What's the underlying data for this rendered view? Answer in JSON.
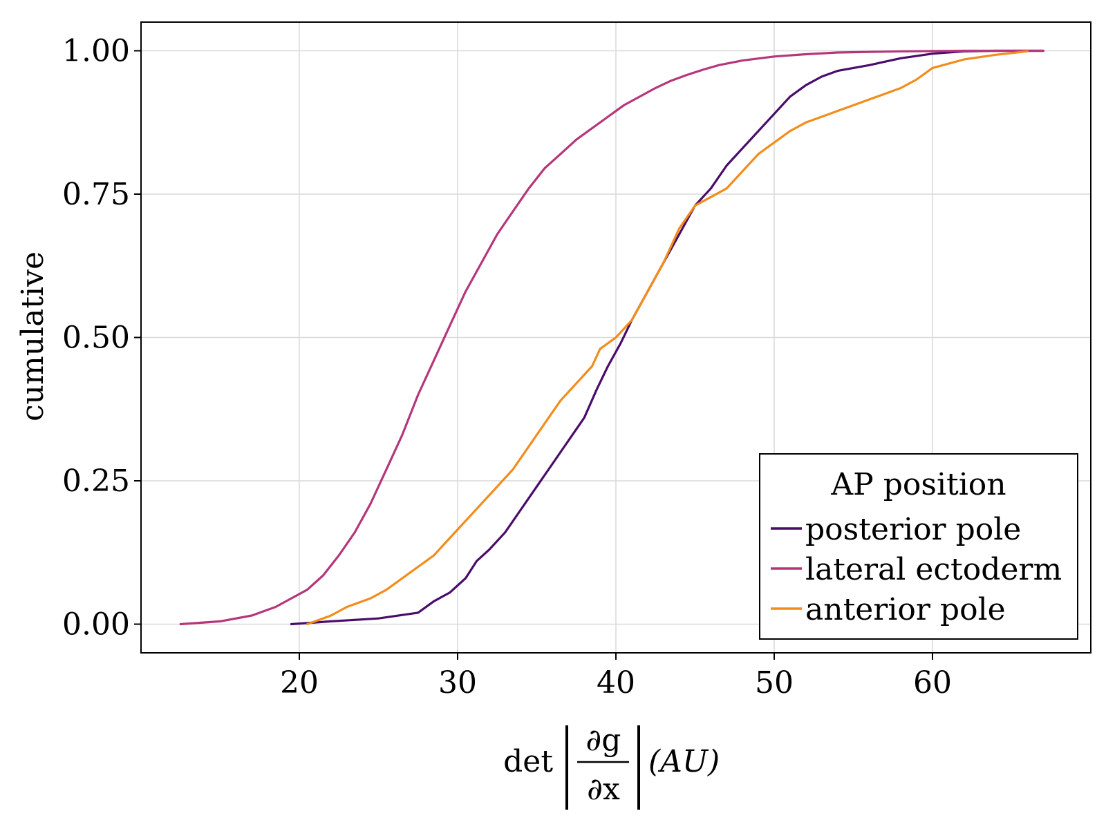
{
  "chart_data": {
    "type": "line",
    "xlabel": "det |∂g/∂x| (AU)",
    "xlabel_parts": {
      "prefix": "det",
      "numerator": "∂g",
      "denominator": "∂x",
      "suffix": "(AU)"
    },
    "ylabel": "cumulative",
    "xlim": [
      10,
      70
    ],
    "ylim": [
      -0.05,
      1.05
    ],
    "xticks": [
      20,
      30,
      40,
      50,
      60
    ],
    "xtick_labels": [
      "20",
      "30",
      "40",
      "50",
      "60"
    ],
    "yticks": [
      0,
      0.25,
      0.5,
      0.75,
      1.0
    ],
    "ytick_labels": [
      "0.00",
      "0.25",
      "0.50",
      "0.75",
      "1.00"
    ],
    "grid": true,
    "legend": {
      "title": "AP position",
      "position": "bottom-right"
    },
    "series": [
      {
        "name": "posterior pole",
        "color": "#4a0c6b",
        "x": [
          19.5,
          22,
          25,
          27.5,
          28.5,
          29.5,
          30.5,
          31.2,
          32,
          33,
          34,
          35,
          36,
          37,
          38,
          38.8,
          39.5,
          40.3,
          41,
          42,
          43,
          44,
          45,
          46,
          47,
          48,
          49,
          50,
          51,
          52,
          53,
          54,
          56,
          58,
          60,
          62,
          64,
          67
        ],
        "y": [
          0.0,
          0.005,
          0.01,
          0.02,
          0.04,
          0.055,
          0.08,
          0.11,
          0.13,
          0.16,
          0.2,
          0.24,
          0.28,
          0.32,
          0.36,
          0.41,
          0.45,
          0.49,
          0.53,
          0.58,
          0.63,
          0.68,
          0.73,
          0.76,
          0.8,
          0.83,
          0.86,
          0.89,
          0.92,
          0.94,
          0.955,
          0.965,
          0.975,
          0.987,
          0.995,
          0.999,
          1.0,
          1.0
        ]
      },
      {
        "name": "lateral ectoderm",
        "color": "#b5367a",
        "x": [
          12.5,
          15,
          17,
          18.5,
          19.5,
          20.5,
          21.5,
          22.5,
          23.5,
          24.5,
          25.5,
          26.5,
          27.5,
          28.5,
          29.5,
          30.5,
          31.5,
          32.5,
          33.5,
          34.5,
          35.5,
          36.5,
          37.5,
          38.5,
          39.5,
          40.5,
          41.5,
          42.5,
          43.5,
          44.5,
          45.5,
          46.5,
          48,
          50,
          52,
          54,
          58,
          62,
          67
        ],
        "y": [
          0.0,
          0.005,
          0.015,
          0.03,
          0.045,
          0.06,
          0.085,
          0.12,
          0.16,
          0.21,
          0.27,
          0.33,
          0.4,
          0.46,
          0.52,
          0.58,
          0.63,
          0.68,
          0.72,
          0.76,
          0.795,
          0.82,
          0.845,
          0.865,
          0.885,
          0.905,
          0.92,
          0.935,
          0.948,
          0.958,
          0.967,
          0.975,
          0.983,
          0.99,
          0.994,
          0.997,
          0.999,
          1.0,
          1.0
        ]
      },
      {
        "name": "anterior pole",
        "color": "#f28c1a",
        "x": [
          20.5,
          22,
          23,
          24.5,
          25.5,
          26.5,
          27.5,
          28.5,
          29.5,
          30.5,
          31.5,
          32.5,
          33.5,
          34.5,
          35.5,
          36.5,
          37.5,
          38.5,
          39,
          40,
          41,
          42,
          43,
          44,
          45,
          46,
          47,
          48,
          49,
          50,
          51,
          52,
          53,
          54,
          55,
          56,
          57,
          58,
          59,
          60,
          62,
          64,
          66
        ],
        "y": [
          0.0,
          0.015,
          0.03,
          0.045,
          0.06,
          0.08,
          0.1,
          0.12,
          0.15,
          0.18,
          0.21,
          0.24,
          0.27,
          0.31,
          0.35,
          0.39,
          0.42,
          0.45,
          0.48,
          0.5,
          0.53,
          0.58,
          0.63,
          0.69,
          0.73,
          0.745,
          0.76,
          0.79,
          0.82,
          0.84,
          0.86,
          0.875,
          0.885,
          0.895,
          0.905,
          0.915,
          0.925,
          0.935,
          0.95,
          0.97,
          0.985,
          0.993,
          0.999
        ]
      }
    ]
  }
}
